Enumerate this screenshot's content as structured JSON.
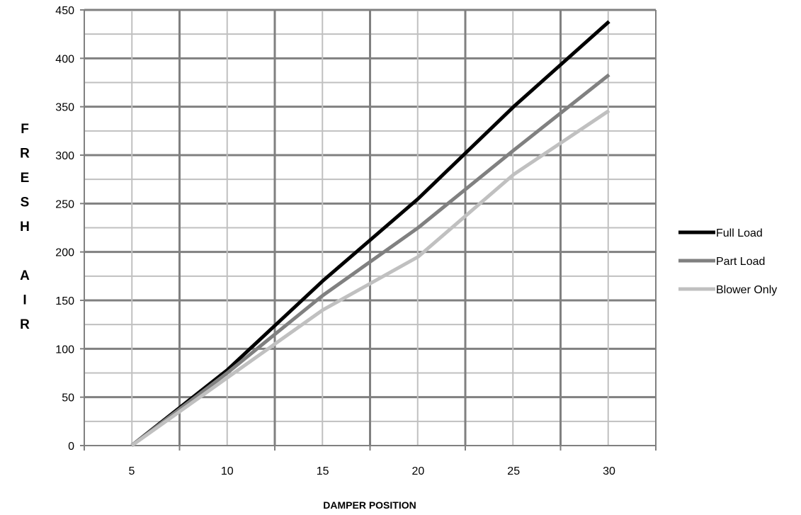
{
  "chart_data": {
    "type": "line",
    "xlabel": "DAMPER POSITION",
    "ylabel": "FRESH AIR",
    "ylabel_letters": [
      "F",
      "R",
      "E",
      "S",
      "H",
      "",
      "A",
      "I",
      "R"
    ],
    "x": [
      5,
      10,
      15,
      20,
      25,
      30
    ],
    "ylim": [
      0,
      450
    ],
    "y_ticks": [
      0,
      50,
      100,
      150,
      200,
      250,
      300,
      350,
      400,
      450
    ],
    "y_tick_labels": [
      "0",
      "50",
      "100",
      "150",
      "200",
      "250",
      "300",
      "350",
      "400",
      "450"
    ],
    "x_tick_labels": [
      "5",
      "10",
      "15",
      "20",
      "25",
      "30"
    ],
    "grid": true,
    "legend_position": "right",
    "series": [
      {
        "name": "Full Load",
        "color": "#000000",
        "values": [
          0,
          78,
          170,
          255,
          350,
          438
        ]
      },
      {
        "name": "Part Load",
        "color": "#808080",
        "values": [
          0,
          75,
          155,
          225,
          305,
          383
        ]
      },
      {
        "name": "Blower Only",
        "color": "#c0c0c0",
        "values": [
          0,
          70,
          140,
          195,
          280,
          346
        ]
      }
    ]
  }
}
